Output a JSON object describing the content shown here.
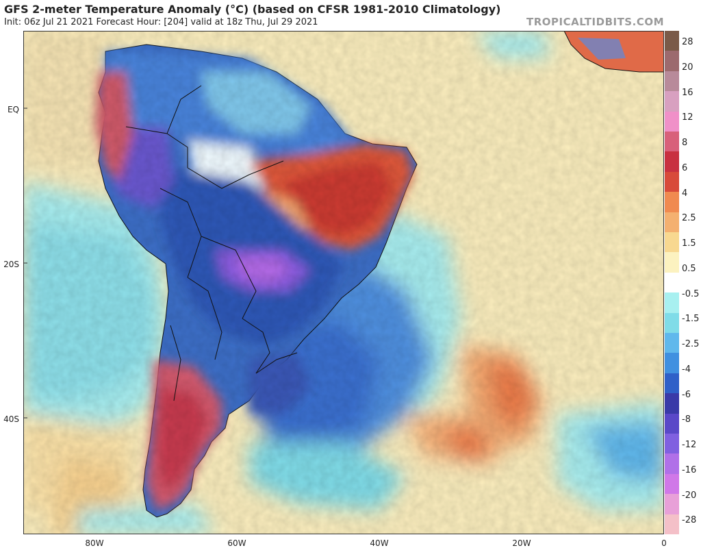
{
  "header": {
    "title": "GFS 2-meter Temperature Anomaly (°C) (based on CFSR 1981-2010 Climatology)",
    "subtitle": "Init: 06z Jul 21 2021   Forecast Hour: [204]   valid at 18z Thu, Jul 29 2021",
    "brand": "TROPICALTIDBITS.COM"
  },
  "map": {
    "region": "South America and South Atlantic",
    "latitude_labels": [
      "EQ",
      "20S",
      "40S"
    ],
    "longitude_labels": [
      "80W",
      "60W",
      "40W",
      "20W",
      "0"
    ]
  },
  "colorbar": {
    "labels": [
      "28",
      "20",
      "16",
      "12",
      "8",
      "6",
      "4",
      "2.5",
      "1.5",
      "0.5",
      "-0.5",
      "-1.5",
      "-2.5",
      "-4",
      "-6",
      "-8",
      "-12",
      "-16",
      "-20",
      "-28"
    ],
    "colors": [
      "#7a5a48",
      "#9c6a6e",
      "#b88a9a",
      "#d8a0c0",
      "#f090c8",
      "#d8607a",
      "#c83040",
      "#d84a3a",
      "#f08a50",
      "#f4b070",
      "#f8d890",
      "#fcf2c0",
      "#ffffff",
      "#a8f0f0",
      "#80dce8",
      "#60b8ec",
      "#4090e0",
      "#2f60c8",
      "#3a3aa8",
      "#5a48c8",
      "#8060e0",
      "#b070e8",
      "#d078e8",
      "#e8a0d8",
      "#f4c0c8"
    ]
  }
}
